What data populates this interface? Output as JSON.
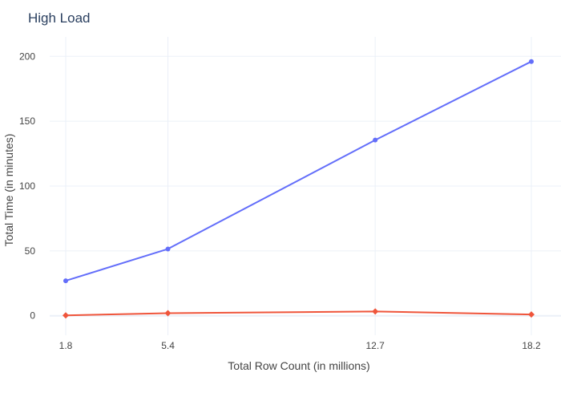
{
  "chart_data": {
    "type": "line",
    "title": "High Load",
    "xlabel": "Total Row Count (in millions)",
    "ylabel": "Total Time (in minutes)",
    "x": [
      1.8,
      5.4,
      12.7,
      18.2
    ],
    "x_tick_labels": [
      "1.8",
      "5.4",
      "12.7",
      "18.2"
    ],
    "y_ticks": [
      0,
      50,
      100,
      150,
      200
    ],
    "xlim": [
      1.8,
      18.2
    ],
    "ylim": [
      -15,
      215
    ],
    "grid": true,
    "legend": "none",
    "series": [
      {
        "color": "#636efa",
        "marker": "circle",
        "values": [
          27,
          51.5,
          135.5,
          196
        ]
      },
      {
        "color": "#ef553b",
        "marker": "diamond",
        "values": [
          0.3,
          2,
          3.3,
          1
        ]
      }
    ]
  }
}
